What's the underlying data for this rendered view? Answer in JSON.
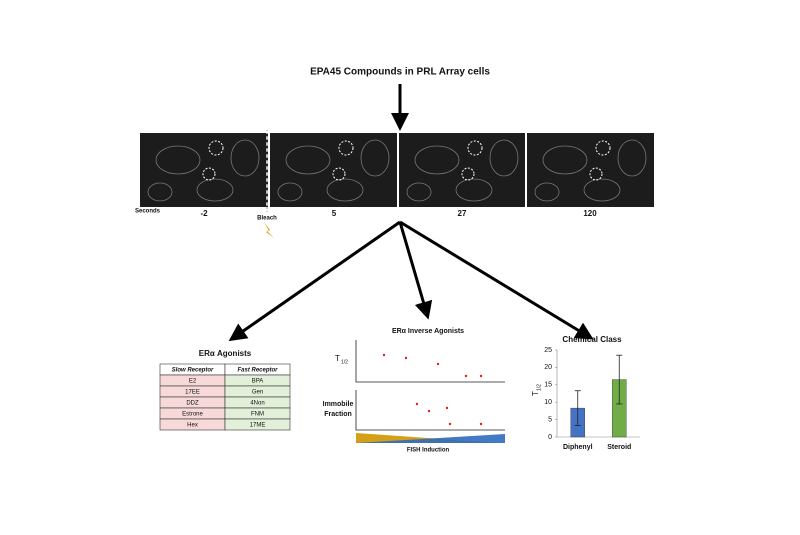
{
  "title": "EPA45 Compounds  in PRL Array cells",
  "timeline": {
    "unit": "Seconds",
    "frames": [
      "-2",
      "5",
      "27",
      "120"
    ],
    "bleach": "Bleach"
  },
  "agonists": {
    "title": "ERα Agonists",
    "headers": [
      "Slow Receptor",
      "Fast Receptor"
    ],
    "rows": [
      [
        "E2",
        "BPA"
      ],
      [
        "17EE",
        "Gen"
      ],
      [
        "DDZ",
        "4Non"
      ],
      [
        "Estrone",
        "FNM"
      ],
      [
        "Hex",
        "17ME"
      ]
    ]
  },
  "inverse_agonists": {
    "title": "ERα Inverse Agonists",
    "t_label": "T",
    "t_sub": "1/2",
    "immobile_label": [
      "Immobile",
      "Fraction"
    ],
    "x_label": "FISH Induction"
  },
  "chart_data": {
    "type": "bar",
    "title": "Chemical Class",
    "ylabel": "T",
    "ylabel_sub": "1/2",
    "categories": [
      "Diphenyl",
      "Steroid"
    ],
    "values": [
      8.3,
      16.5
    ],
    "errors": [
      5,
      7
    ],
    "colors": [
      "#4472c4",
      "#70ad47"
    ],
    "ylim": [
      0,
      25
    ],
    "yticks": [
      0,
      5,
      10,
      15,
      20,
      25
    ]
  }
}
